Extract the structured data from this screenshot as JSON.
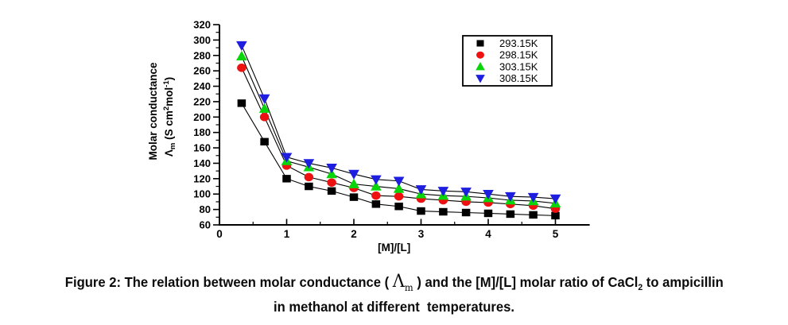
{
  "chart_data": {
    "type": "scatter",
    "title": "",
    "xlabel": "[M]/[L]",
    "ylabel_line1": "Molar conductance",
    "ylabel_line2_parts": [
      {
        "t": "Λ"
      },
      {
        "t": "m",
        "type": "sub"
      },
      {
        "t": " (S cm"
      },
      {
        "t": "2",
        "type": "sup"
      },
      {
        "t": "mol"
      },
      {
        "t": "-1",
        "type": "sup"
      },
      {
        "t": ")"
      }
    ],
    "xlim": [
      0,
      5.51
    ],
    "ylim": [
      60,
      320
    ],
    "x_major_ticks": [
      0,
      1,
      2,
      3,
      4,
      5
    ],
    "x_minor_ticks": [
      0.5,
      1.5,
      2.5,
      3.5,
      4.5
    ],
    "y_major_step": 20,
    "y_minor_step": 10,
    "grid": false,
    "line_color": "#000000",
    "legend": {
      "position": "top-right"
    },
    "x": [
      0.33,
      0.67,
      1.0,
      1.33,
      1.67,
      2.0,
      2.33,
      2.67,
      3.0,
      3.33,
      3.67,
      4.0,
      4.33,
      4.67,
      5.0
    ],
    "series": [
      {
        "name": "293.15K",
        "marker": "square",
        "color": "#000000",
        "values": [
          218,
          168,
          120,
          110,
          104,
          96,
          87,
          84,
          78,
          77,
          76,
          75,
          74,
          73,
          72
        ]
      },
      {
        "name": "298.15K",
        "marker": "circle",
        "color": "#ee1111",
        "values": [
          264,
          200,
          137,
          122,
          115,
          108,
          98,
          97,
          94,
          92,
          90,
          89,
          87,
          85,
          81
        ]
      },
      {
        "name": "303.15K",
        "marker": "triangle-up",
        "color": "#0ad40a",
        "values": [
          279,
          211,
          143,
          135,
          126,
          113,
          110,
          107,
          100,
          98,
          97,
          95,
          92,
          91,
          88
        ]
      },
      {
        "name": "308.15K",
        "marker": "triangle-down",
        "color": "#1e1ee0",
        "values": [
          293,
          224,
          148,
          140,
          134,
          126,
          119,
          117,
          106,
          104,
          103,
          100,
          97,
          96,
          94
        ]
      }
    ]
  },
  "caption": {
    "line1_parts": [
      {
        "t": "Figure 2: The relation between molar conductance ( "
      },
      {
        "t": "Λ",
        "type": "lambda"
      },
      {
        "t": "m",
        "type": "lambda-sub"
      },
      {
        "t": " ) and the [M]/[L] molar ratio of CaCl"
      },
      {
        "t": "2",
        "type": "sub"
      },
      {
        "t": " to ampicillin"
      }
    ],
    "line2": "in methanol at different  temperatures."
  }
}
